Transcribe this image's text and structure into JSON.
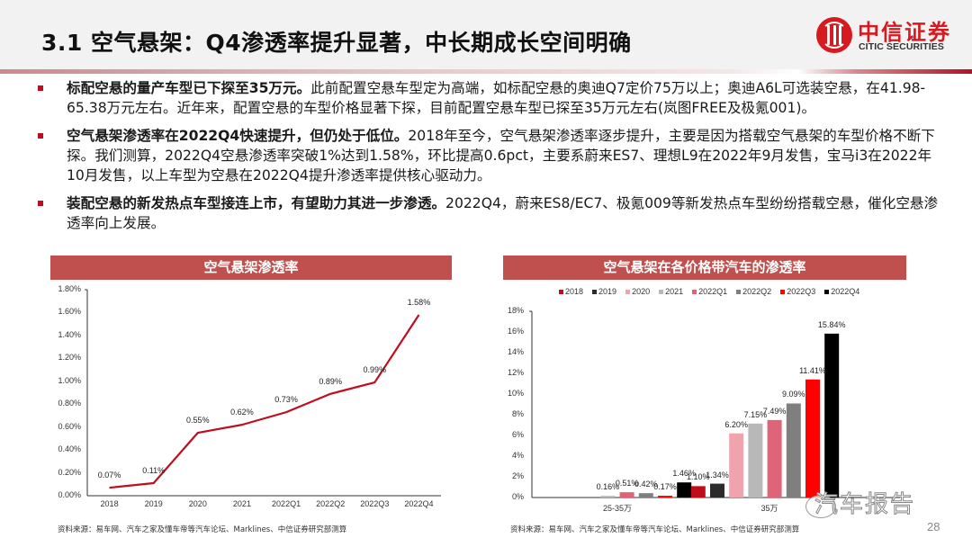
{
  "header": {
    "title": "3.1 空气悬架：Q4渗透率提升显著，中长期成长空间明确",
    "logo_cn": "中信证券",
    "logo_en": "CITIC SECURITIES",
    "brand_color": "#d71920"
  },
  "bullets": [
    {
      "bold": "标配空悬的量产车型已下探至35万元。",
      "text": "此前配置空悬车型定为高端，如标配空悬的奥迪Q7定价75万以上；奥迪A6L可选装空悬，在41.98-65.38万元左右。近年来，配置空悬的车型价格显著下探，目前配置空悬车型已探至35万元左右(岚图FREE及极氪001)。"
    },
    {
      "bold": "空气悬架渗透率在2022Q4快速提升，但仍处于低位。",
      "text": "2018年至今，空气悬架渗透率逐步提升，主要是因为搭载空气悬架的车型价格不断下探。我们测算，2022Q4空悬渗透率突破1%达到1.58%，环比提高0.6pct，主要系蔚来ES7、理想L9在2022年9月发售，宝马i3在2022年10月发售，以上车型为空悬在2022Q4提升渗透率提供核心驱动力。"
    },
    {
      "bold": "装配空悬的新发热点车型接连上市，有望助力其进一步渗透。",
      "text": "2022Q4，蔚来ES8/EC7、极氪009等新发热点车型纷纷搭载空悬，催化空悬渗透率向上发展。"
    }
  ],
  "chart_data": [
    {
      "type": "line",
      "title": "空气悬架渗透率",
      "categories": [
        "2018",
        "2019",
        "2020",
        "2021",
        "2022Q1",
        "2022Q2",
        "2022Q3",
        "2022Q4"
      ],
      "values": [
        0.07,
        0.11,
        0.55,
        0.62,
        0.73,
        0.89,
        0.99,
        1.58
      ],
      "value_labels": [
        "0.07%",
        "0.11%",
        "0.55%",
        "0.62%",
        "0.73%",
        "0.89%",
        "0.99%",
        "1.58%"
      ],
      "xlabel": "",
      "ylabel": "",
      "ylim": [
        0,
        1.8
      ],
      "yticks": [
        "0.00%",
        "0.20%",
        "0.40%",
        "0.60%",
        "0.80%",
        "1.00%",
        "1.20%",
        "1.40%",
        "1.60%",
        "1.80%"
      ],
      "line_color": "#c00d1e",
      "grid": false,
      "source": "资料来源：易车网、汽车之家及懂车帝等汽车论坛、Marklines、中信证券研究部测算"
    },
    {
      "type": "bar",
      "title": "空气悬架在各价格带汽车的渗透率",
      "categories": [
        "25-35万",
        "35万"
      ],
      "series": [
        {
          "name": "2018",
          "values": [
            0,
            1.1
          ],
          "color": "#c00d1e"
        },
        {
          "name": "2019",
          "values": [
            0,
            1.34
          ],
          "color": "#2b2b2b"
        },
        {
          "name": "2020",
          "values": [
            0,
            6.2
          ],
          "color": "#f0a3ac"
        },
        {
          "name": "2021",
          "values": [
            0.16,
            7.15
          ],
          "color": "#b8b8b8"
        },
        {
          "name": "2022Q1",
          "values": [
            0.51,
            7.49
          ],
          "color": "#e06478"
        },
        {
          "name": "2022Q2",
          "values": [
            0.42,
            9.09
          ],
          "color": "#7f7f7f"
        },
        {
          "name": "2022Q3",
          "values": [
            0.17,
            11.41
          ],
          "color": "#ff0000"
        },
        {
          "name": "2022Q4",
          "values": [
            1.46,
            15.84
          ],
          "color": "#000000"
        }
      ],
      "value_labels": [
        [
          "",
          "",
          "",
          "0.16%",
          "0.51%",
          "0.42%",
          "0.17%",
          "1.46%"
        ],
        [
          "1.10%",
          "1.34%",
          "6.20%",
          "7.15%",
          "7.49%",
          "9.09%",
          "11.41%",
          "15.84%"
        ]
      ],
      "xlabel": "",
      "ylabel": "",
      "ylim": [
        0,
        18
      ],
      "yticks": [
        "0%",
        "2%",
        "4%",
        "6%",
        "8%",
        "10%",
        "12%",
        "14%",
        "16%",
        "18%"
      ],
      "legend_position": "top",
      "grid": false,
      "source": "资料来源：易车网、汽车之家及懂车帝等汽车论坛、Marklines、中信证券研究部测算"
    }
  ],
  "footer": {
    "watermark": "汽车报告",
    "page_number": "28"
  }
}
